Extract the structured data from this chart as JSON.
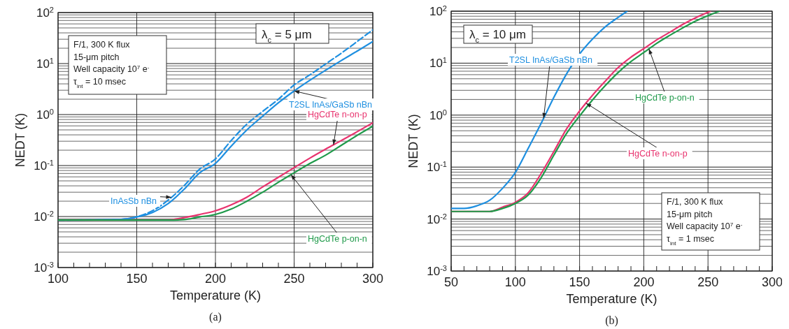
{
  "chart_data": [
    {
      "type": "line",
      "title": "(a)",
      "xlabel": "Temperature (K)",
      "ylabel": "NEDT (K)",
      "log": "y",
      "grid": true,
      "marker": "none",
      "xlim": [
        100,
        300
      ],
      "ylim": [
        0.001,
        100
      ],
      "xticks": [
        100,
        {
          "value": 110,
          "label": null
        },
        {
          "value": 120,
          "label": null
        },
        {
          "value": 130,
          "label": null
        },
        {
          "value": 140,
          "label": null
        },
        150,
        {
          "value": 160,
          "label": null
        },
        {
          "value": 170,
          "label": null
        },
        {
          "value": 180,
          "label": null
        },
        {
          "value": 190,
          "label": null
        },
        200,
        {
          "value": 210,
          "label": null
        },
        {
          "value": 220,
          "label": null
        },
        {
          "value": 230,
          "label": null
        },
        {
          "value": 240,
          "label": null
        },
        250,
        {
          "value": 260,
          "label": null
        },
        {
          "value": 270,
          "label": null
        },
        {
          "value": 280,
          "label": null
        },
        {
          "value": 290,
          "label": null
        },
        300
      ],
      "yticks": [
        {
          "value": 0.001,
          "label": "10$^{-3}$"
        },
        {
          "value": 0.01,
          "label": "10$^{-2}$"
        },
        {
          "value": 0.1,
          "label": "10$^{-1}$"
        },
        {
          "value": 1,
          "label": "10$^{0}$"
        },
        {
          "value": 10,
          "label": "10$^{1}$"
        },
        {
          "value": 100,
          "label": "10$^{2}$"
        }
      ],
      "annotations": [
        "λ$_{c}$ = 5 μm",
        "F/1, 300 K flux",
        "15-μm pitch",
        "Well capacity 10$^{7}$ e$^{-}$",
        "τ$_{int}$ = 10 msec"
      ],
      "series": [
        {
          "name": "T2SL InAs/GaSb nBn",
          "color": "#1e8fe0",
          "line_style": "solid",
          "x": [
            100,
            140,
            150,
            160,
            170,
            180,
            190,
            200,
            210,
            220,
            230,
            240,
            250,
            260,
            270,
            280,
            290,
            300
          ],
          "values": [
            0.0085,
            0.0088,
            0.0098,
            0.012,
            0.018,
            0.034,
            0.072,
            0.11,
            0.24,
            0.5,
            0.93,
            1.7,
            2.9,
            4.7,
            7.4,
            11.5,
            17.5,
            27
          ]
        },
        {
          "name": "InAsSb nBn",
          "color": "#1e8fe0",
          "line_style": "dashed",
          "x": [
            100,
            140,
            150,
            160,
            170,
            180,
            190,
            200,
            210,
            220,
            230,
            240,
            250,
            260,
            270,
            280,
            290,
            300
          ],
          "values": [
            0.0085,
            0.0088,
            0.0099,
            0.013,
            0.021,
            0.04,
            0.085,
            0.135,
            0.31,
            0.65,
            1.15,
            2,
            3.8,
            6,
            9.8,
            16,
            27,
            46
          ]
        },
        {
          "name": "HgCdTe n-on-p",
          "color": "#e8336e",
          "line_style": "solid",
          "x": [
            100,
            170,
            180,
            190,
            200,
            210,
            220,
            230,
            240,
            250,
            260,
            270,
            280,
            290,
            300
          ],
          "values": [
            0.0085,
            0.0086,
            0.0095,
            0.011,
            0.013,
            0.017,
            0.024,
            0.038,
            0.059,
            0.091,
            0.14,
            0.21,
            0.31,
            0.46,
            0.69
          ]
        },
        {
          "name": "HgCdTe p-on-n",
          "color": "#1f9a4a",
          "line_style": "solid",
          "x": [
            100,
            170,
            180,
            190,
            200,
            210,
            220,
            230,
            240,
            250,
            260,
            270,
            280,
            290,
            300
          ],
          "values": [
            0.0085,
            0.0085,
            0.0087,
            0.0098,
            0.011,
            0.014,
            0.02,
            0.03,
            0.047,
            0.072,
            0.11,
            0.16,
            0.25,
            0.39,
            0.59
          ]
        }
      ]
    },
    {
      "type": "line",
      "title": "(b)",
      "xlabel": "Temperature (K)",
      "ylabel": "NEDT (K)",
      "log": "y",
      "grid": true,
      "marker": "none",
      "xlim": [
        50,
        300
      ],
      "ylim": [
        0.001,
        100
      ],
      "xticks": [
        50,
        {
          "value": 60,
          "label": null
        },
        {
          "value": 70,
          "label": null
        },
        {
          "value": 80,
          "label": null
        },
        {
          "value": 90,
          "label": null
        },
        100,
        {
          "value": 110,
          "label": null
        },
        {
          "value": 120,
          "label": null
        },
        {
          "value": 130,
          "label": null
        },
        {
          "value": 140,
          "label": null
        },
        150,
        {
          "value": 160,
          "label": null
        },
        {
          "value": 170,
          "label": null
        },
        {
          "value": 180,
          "label": null
        },
        {
          "value": 190,
          "label": null
        },
        200,
        {
          "value": 210,
          "label": null
        },
        {
          "value": 220,
          "label": null
        },
        {
          "value": 230,
          "label": null
        },
        {
          "value": 240,
          "label": null
        },
        250,
        {
          "value": 260,
          "label": null
        },
        {
          "value": 270,
          "label": null
        },
        {
          "value": 280,
          "label": null
        },
        {
          "value": 290,
          "label": null
        },
        300
      ],
      "yticks": [
        {
          "value": 0.001,
          "label": "10$^{-3}$"
        },
        {
          "value": 0.01,
          "label": "10$^{-2}$"
        },
        {
          "value": 0.1,
          "label": "10$^{-1}$"
        },
        {
          "value": 1,
          "label": "10$^{0}$"
        },
        {
          "value": 10,
          "label": "10$^{1}$"
        },
        {
          "value": 100,
          "label": "10$^{2}$"
        }
      ],
      "annotations": [
        "λ$_{c}$ = 10 μm",
        "F/1, 300 K flux",
        "15-μm pitch",
        "Well capacity 10$^{7}$ e$^{-}$",
        "τ$_{int}$ = 1 msec"
      ],
      "series": [
        {
          "name": "T2SL InAs/GaSb nBn",
          "color": "#1e8fe0",
          "line_style": "solid",
          "x": [
            50,
            60,
            70,
            80,
            90,
            100,
            110,
            120,
            130,
            140,
            150,
            160,
            170,
            180,
            187
          ],
          "values": [
            0.016,
            0.016,
            0.018,
            0.023,
            0.039,
            0.079,
            0.23,
            0.69,
            2.2,
            6.3,
            15,
            29,
            50,
            76,
            100
          ]
        },
        {
          "name": "HgCdTe n-on-p",
          "color": "#e8336e",
          "line_style": "solid",
          "x": [
            50,
            80,
            90,
            100,
            110,
            120,
            130,
            140,
            150,
            160,
            170,
            180,
            190,
            200,
            210,
            220,
            230,
            240,
            252
          ],
          "values": [
            0.014,
            0.014,
            0.017,
            0.021,
            0.032,
            0.075,
            0.2,
            0.55,
            1.2,
            2.4,
            4.5,
            8.2,
            13,
            19,
            28,
            39,
            55,
            74,
            100
          ]
        },
        {
          "name": "HgCdTe p-on-n",
          "color": "#1f9a4a",
          "line_style": "solid",
          "x": [
            50,
            80,
            90,
            100,
            110,
            120,
            130,
            140,
            150,
            160,
            170,
            180,
            190,
            200,
            210,
            220,
            230,
            240,
            250,
            259
          ],
          "values": [
            0.014,
            0.014,
            0.016,
            0.02,
            0.029,
            0.062,
            0.17,
            0.45,
            0.96,
            1.95,
            3.7,
            6.6,
            10.7,
            16,
            24,
            34,
            47,
            64,
            82,
            100
          ]
        }
      ]
    }
  ]
}
